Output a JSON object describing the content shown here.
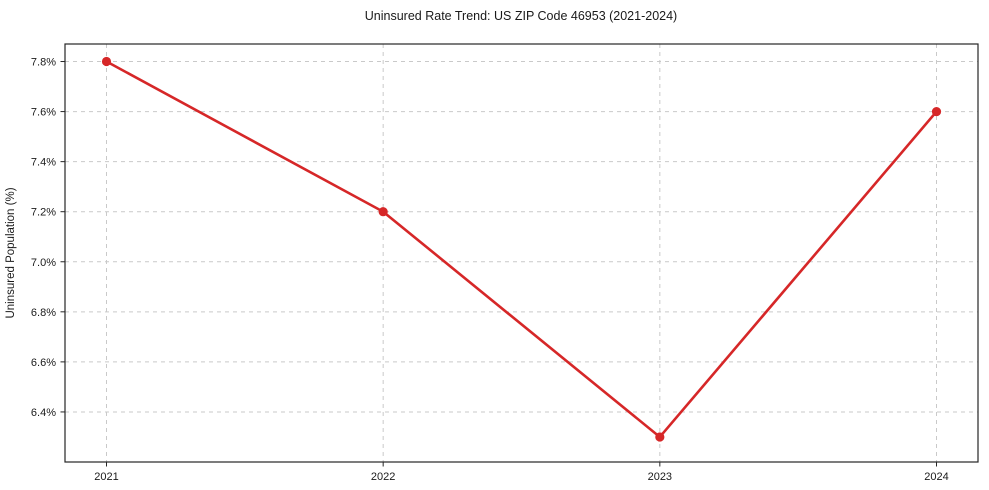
{
  "chart_data": {
    "type": "line",
    "title": "Uninsured Rate Trend: US ZIP Code 46953 (2021-2024)",
    "xlabel": "",
    "ylabel": "Uninsured Population (%)",
    "x": [
      2021,
      2022,
      2023,
      2024
    ],
    "x_tick_labels": [
      "2021",
      "2022",
      "2023",
      "2024"
    ],
    "series": [
      {
        "name": "uninsured-rate",
        "values": [
          7.8,
          7.2,
          6.3,
          7.6
        ]
      }
    ],
    "y_ticks": [
      6.4,
      6.6,
      6.8,
      7.0,
      7.2,
      7.4,
      7.6,
      7.8
    ],
    "y_tick_labels": [
      "6.4%",
      "6.6%",
      "6.8%",
      "7.0%",
      "7.2%",
      "7.4%",
      "7.6%",
      "7.8%"
    ],
    "xlim": [
      2020.85,
      2024.15
    ],
    "ylim": [
      6.2,
      7.87
    ],
    "grid": true,
    "grid_style": "dashed",
    "legend": "none",
    "colors": {
      "line": "#d62728",
      "marker": "#d62728",
      "grid": "#c9c9c9",
      "spine": "#262626",
      "text": "#1a1a1a",
      "background": "#ffffff"
    }
  }
}
